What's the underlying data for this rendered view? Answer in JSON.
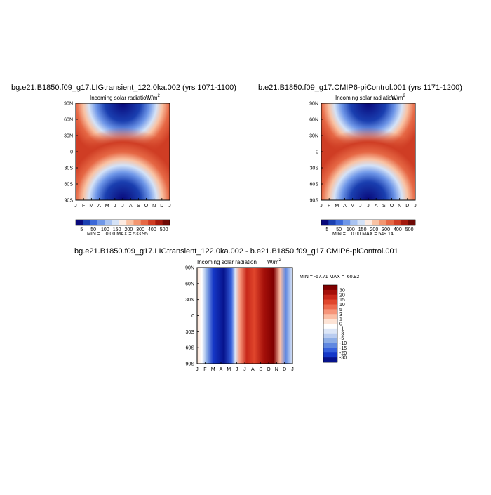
{
  "chart_data": [
    {
      "type": "heatmap",
      "title": "bg.e21.B1850.f09_g17.LIGtransient_122.0ka.002 (yrs 1071-1100)",
      "subtitle": "Incoming solar radiation",
      "units": "W/m",
      "units_sup": "2",
      "xticks": [
        "J",
        "F",
        "M",
        "A",
        "M",
        "J",
        "J",
        "A",
        "S",
        "O",
        "N",
        "D",
        "J"
      ],
      "yticks": [
        "90N",
        "60N",
        "30N",
        "0",
        "30S",
        "60S",
        "90S"
      ],
      "colorbar": {
        "orientation": "horizontal",
        "labels": [
          "5",
          "50",
          "100",
          "150",
          "200",
          "300",
          "400",
          "500"
        ],
        "colors": [
          "#08087a",
          "#1a3fb0",
          "#3b68d8",
          "#6f97e8",
          "#a9c3f1",
          "#d4e2f7",
          "#fdebe1",
          "#f9c2a3",
          "#f29670",
          "#e66845",
          "#cf3d24",
          "#a31a0e",
          "#6e0a06"
        ]
      },
      "stats": "MIN =    0.00 MAX = 533.95",
      "min": 0.0,
      "max": 533.95
    },
    {
      "type": "heatmap",
      "title": "b.e21.B1850.f09_g17.CMIP6-piControl.001 (yrs 1171-1200)",
      "subtitle": "Incoming solar radiation",
      "units": "W/m",
      "units_sup": "2",
      "xticks": [
        "J",
        "F",
        "M",
        "A",
        "M",
        "J",
        "J",
        "A",
        "S",
        "O",
        "N",
        "D",
        "J"
      ],
      "yticks": [
        "90N",
        "60N",
        "30N",
        "0",
        "30S",
        "60S",
        "90S"
      ],
      "colorbar": {
        "orientation": "horizontal",
        "labels": [
          "5",
          "50",
          "100",
          "150",
          "200",
          "300",
          "400",
          "500"
        ],
        "colors": [
          "#08087a",
          "#1a3fb0",
          "#3b68d8",
          "#6f97e8",
          "#a9c3f1",
          "#d4e2f7",
          "#fdebe1",
          "#f9c2a3",
          "#f29670",
          "#e66845",
          "#cf3d24",
          "#a31a0e",
          "#6e0a06"
        ]
      },
      "stats": "MIN =    0.00 MAX = 549.14",
      "min": 0.0,
      "max": 549.14
    },
    {
      "type": "heatmap",
      "title": "bg.e21.B1850.f09_g17.LIGtransient_122.0ka.002 - b.e21.B1850.f09_g17.CMIP6-piControl.001",
      "subtitle": "Incoming solar radiation",
      "units": "W/m",
      "units_sup": "2",
      "xticks": [
        "J",
        "F",
        "M",
        "A",
        "M",
        "J",
        "J",
        "A",
        "S",
        "O",
        "N",
        "D",
        "J"
      ],
      "yticks": [
        "90N",
        "60N",
        "30N",
        "0",
        "30S",
        "60S",
        "90S"
      ],
      "colorbar": {
        "orientation": "vertical",
        "labels": [
          "30",
          "20",
          "15",
          "10",
          "5",
          "3",
          "1",
          "0",
          "-1",
          "-3",
          "-5",
          "-10",
          "-15",
          "-20",
          "-30"
        ],
        "colors": [
          "#800000",
          "#a5100a",
          "#c8281a",
          "#e0462c",
          "#ee6b4e",
          "#f6957a",
          "#fbbfa6",
          "#fde4d6",
          "#ffffff",
          "#dce6f7",
          "#b9ccf0",
          "#8eaee6",
          "#6088e0",
          "#3660dc",
          "#1538c8",
          "#06128c"
        ]
      },
      "stats": "MIN = -57.71 MAX =  60.92",
      "min": -57.71,
      "max": 60.92
    }
  ]
}
